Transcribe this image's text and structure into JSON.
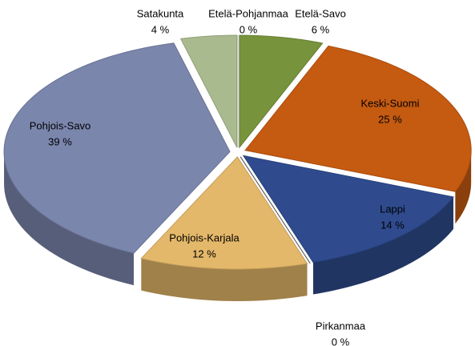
{
  "chart_data": {
    "type": "pie",
    "categories": [
      "Etelä-Savo",
      "Keski-Suomi",
      "Lappi",
      "Pirkanmaa",
      "Pohjois-Karjala",
      "Pohjois-Savo",
      "Satakunta",
      "Etelä-Pohjanmaa"
    ],
    "values": [
      6,
      25,
      14,
      0,
      12,
      39,
      4,
      0
    ],
    "value_labels": [
      "6 %",
      "25 %",
      "14 %",
      "0 %",
      "12 %",
      "39 %",
      "4 %",
      "0 %"
    ],
    "colors": [
      "#77933c",
      "#c55a11",
      "#2f4b8e",
      "#555555",
      "#e4b86a",
      "#7b86ad",
      "#a9bb8e",
      "#e8e8e8"
    ]
  }
}
